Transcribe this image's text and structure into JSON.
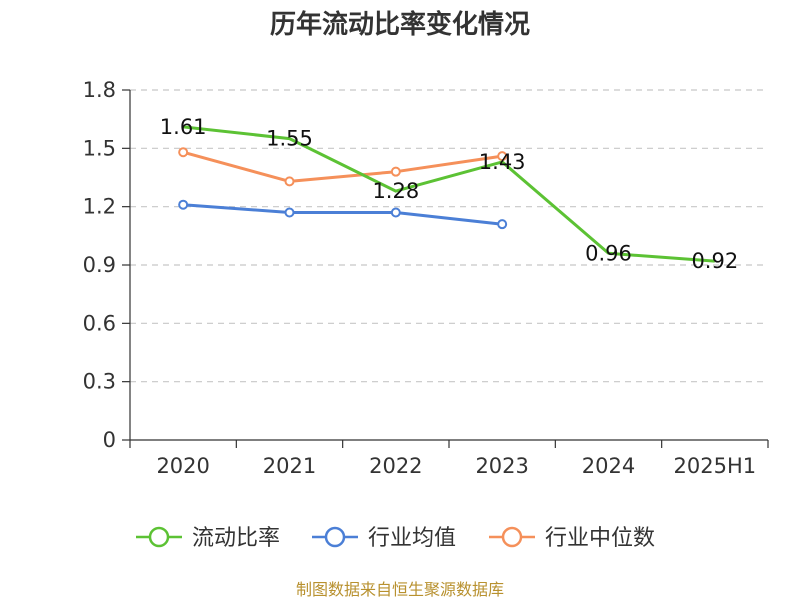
{
  "chart_data": {
    "type": "line",
    "title": "历年流动比率变化情况",
    "categories": [
      "2020",
      "2021",
      "2022",
      "2023",
      "2024",
      "2025H1"
    ],
    "ylim": [
      0,
      1.8
    ],
    "yticks": [
      "0",
      "0.3",
      "0.6",
      "0.9",
      "1.2",
      "1.5",
      "1.8"
    ],
    "grid": true,
    "legend_position": "bottom",
    "series": [
      {
        "name": "流动比率",
        "color": "#5cc234",
        "values": [
          1.61,
          1.55,
          1.28,
          1.43,
          0.96,
          0.92
        ],
        "labels": [
          "1.61",
          "1.55",
          "1.28",
          "1.43",
          "0.96",
          "0.92"
        ],
        "markers": false
      },
      {
        "name": "行业均值",
        "color": "#4b7fd6",
        "values": [
          1.21,
          1.17,
          1.17,
          1.11,
          null,
          null
        ],
        "markers": true
      },
      {
        "name": "行业中位数",
        "color": "#f5905a",
        "values": [
          1.48,
          1.33,
          1.38,
          1.46,
          null,
          null
        ],
        "markers": true
      }
    ],
    "source": "制图数据来自恒生聚源数据库"
  }
}
